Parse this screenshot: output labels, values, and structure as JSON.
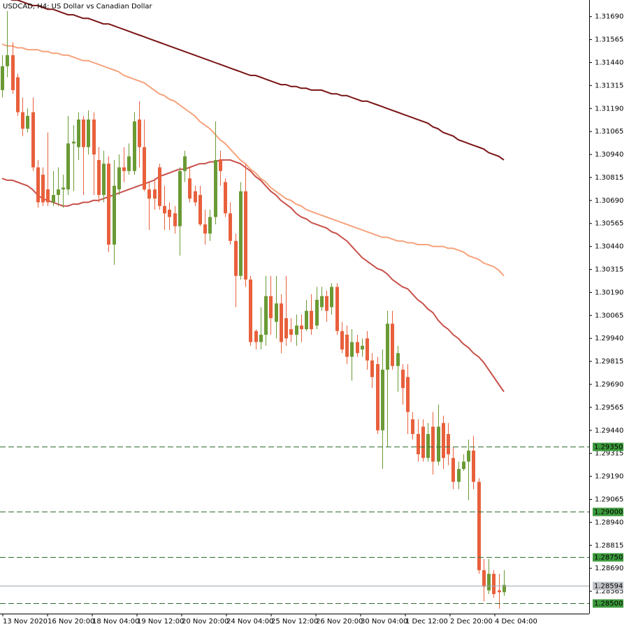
{
  "chart_data": {
    "type": "candlestick",
    "title": "USDCAD, H4:  US Dollar vs Canadian Dollar",
    "up_color": "#6a9a35",
    "down_color": "#e8603c",
    "ylim": [
      1.284436,
      1.3178
    ],
    "yticks": [
      {
        "value": 1.3169,
        "label": "1.31690"
      },
      1.31565,
      {
        "value": 1.3144,
        "label": "1.31440"
      },
      1.31315,
      {
        "value": 1.3119,
        "label": "1.31190"
      },
      1.31065,
      {
        "value": 1.3094,
        "label": "1.30940"
      },
      1.30815,
      {
        "value": 1.3069,
        "label": "1.30690"
      },
      1.30565,
      {
        "value": 1.3044,
        "label": "1.30440"
      },
      1.30315,
      {
        "value": 1.3019,
        "label": "1.30190"
      },
      1.30065,
      {
        "value": 1.2994,
        "label": "1.29940"
      },
      1.29815,
      {
        "value": 1.2969,
        "label": "1.29690"
      },
      1.29565,
      {
        "value": 1.2944,
        "label": "1.29440"
      },
      1.29315,
      {
        "value": 1.2919,
        "label": "1.29190"
      },
      1.29065,
      {
        "value": 1.2894,
        "label": "1.28940"
      },
      1.28815,
      {
        "value": 1.2869,
        "label": "1.28690"
      },
      1.28565
    ],
    "x_labels": [
      "13 Nov 2020",
      "16 Nov 20:00",
      "18 Nov 04:00",
      "19 Nov 12:00",
      "20 Nov 20:00",
      "24 Nov 04:00",
      "25 Nov 12:00",
      "26 Nov 20:00",
      "30 Nov 04:00",
      "1 Dec 12:00",
      "2 Dec 20:00",
      "4 Dec 04:00"
    ],
    "levels": [
      {
        "value": 1.2935,
        "label": "1.29350"
      },
      {
        "value": 1.29,
        "label": "1.29000"
      },
      {
        "value": 1.2875,
        "label": "1.28750"
      },
      {
        "value": 1.285,
        "label": "1.28500"
      }
    ],
    "level_color": "#2f6e2f",
    "bid": 1.28594,
    "open": [
      1.3129,
      1.3142,
      1.3148,
      1.3136,
      1.3117,
      1.3108,
      1.3117,
      1.3087,
      1.3083,
      1.3075,
      1.3068,
      1.3072,
      1.3075,
      1.3075,
      1.31,
      1.3098,
      1.3113,
      1.3098,
      1.3113,
      1.3091,
      1.3072,
      1.3089,
      1.3045,
      1.3075,
      1.3087,
      1.3085,
      1.3085,
      1.3113,
      1.3098,
      1.3075,
      1.3075,
      1.3087,
      1.3066,
      1.3064,
      1.3062,
      1.3055,
      1.3085,
      1.3081,
      1.3074,
      1.3072,
      1.3056,
      1.3051,
      1.306,
      1.3091,
      1.3079,
      1.3062,
      1.3047,
      1.3028,
      1.3074,
      1.3026,
      1.2998,
      1.2992,
      1.2996,
      1.3017,
      1.3003,
      1.3013,
      1.3005,
      1.2999,
      1.2996,
      1.3001,
      1.2999,
      1.3009,
      1.3001,
      1.3011,
      1.3017,
      1.3011,
      1.3022,
      1.2998,
      1.2996,
      1.2984,
      1.2992,
      1.2988,
      1.2994,
      1.2982,
      1.298,
      1.2944,
      1.2977,
      1.3002,
      1.2979,
      1.2977,
      1.2973,
      1.295,
      1.2942,
      1.2946,
      1.2929,
      1.2946,
      1.2927,
      1.2948,
      1.2942,
      1.2929,
      1.2916,
      1.2923,
      1.2927,
      1.2933,
      1.2916,
      1.2868,
      1.2857,
      1.2866,
      1.2857,
      1.2856
    ],
    "high": [
      1.3148,
      1.3172,
      1.3155,
      1.3138,
      1.3125,
      1.3119,
      1.3125,
      1.3091,
      1.3087,
      1.3106,
      1.3085,
      1.3087,
      1.3083,
      1.3115,
      1.311,
      1.3117,
      1.3115,
      1.3118,
      1.3117,
      1.3098,
      1.3096,
      1.3093,
      1.3091,
      1.3094,
      1.3098,
      1.31,
      1.3117,
      1.3123,
      1.3113,
      1.3079,
      1.3081,
      1.3089,
      1.3077,
      1.3068,
      1.3066,
      1.3087,
      1.3096,
      1.3087,
      1.3077,
      1.3077,
      1.3064,
      1.3064,
      1.3112,
      1.3096,
      1.3081,
      1.3068,
      1.3051,
      1.3079,
      1.3089,
      1.3028,
      1.2999,
      1.3011,
      1.3028,
      1.3028,
      1.3028,
      1.3018,
      1.3028,
      1.3005,
      1.3007,
      1.3007,
      1.3015,
      1.3018,
      1.3022,
      1.3022,
      1.302,
      1.3024,
      1.3024,
      1.3003,
      1.3001,
      1.2999,
      1.2996,
      1.2994,
      1.2998,
      1.2986,
      1.2984,
      1.2988,
      1.3009,
      1.3009,
      1.299,
      1.298,
      1.298,
      1.2954,
      1.295,
      1.295,
      1.2948,
      1.2954,
      1.2958,
      1.2952,
      1.2948,
      1.2935,
      1.2927,
      1.2931,
      1.2939,
      1.2941,
      1.2918,
      1.2874,
      1.2874,
      1.2868,
      1.2866,
      1.2868
    ],
    "low": [
      1.3125,
      1.3136,
      1.3127,
      1.3115,
      1.3104,
      1.3106,
      1.3085,
      1.3065,
      1.3066,
      1.3066,
      1.3066,
      1.3066,
      1.3065,
      1.3072,
      1.3074,
      1.3091,
      1.3072,
      1.3094,
      1.3072,
      1.3068,
      1.3068,
      1.3041,
      1.3034,
      1.3072,
      1.3079,
      1.3083,
      1.3083,
      1.3087,
      1.3074,
      1.3053,
      1.3064,
      1.3064,
      1.3053,
      1.3053,
      1.3051,
      1.3039,
      1.3079,
      1.3068,
      1.3066,
      1.3055,
      1.3045,
      1.3047,
      1.3056,
      1.3077,
      1.306,
      1.3045,
      1.3011,
      1.3026,
      1.3022,
      1.299,
      1.2988,
      1.2988,
      1.299,
      1.2996,
      1.2994,
      1.2986,
      1.299,
      1.2992,
      1.299,
      1.2992,
      1.2998,
      1.2996,
      1.2999,
      1.3009,
      1.3003,
      1.3007,
      1.2996,
      1.2986,
      1.298,
      1.2971,
      1.2984,
      1.2984,
      1.2977,
      1.2967,
      1.2942,
      1.2923,
      1.2935,
      1.2977,
      1.2965,
      1.2958,
      1.2942,
      1.2939,
      1.2927,
      1.2927,
      1.2927,
      1.292,
      1.2925,
      1.2923,
      1.2925,
      1.2912,
      1.2912,
      1.2922,
      1.2906,
      1.2912,
      1.2866,
      1.2851,
      1.2855,
      1.2853,
      1.2847,
      1.2854
    ],
    "close": [
      1.3142,
      1.3148,
      1.3129,
      1.3117,
      1.3108,
      1.3115,
      1.3087,
      1.3068,
      1.3068,
      1.3068,
      1.3072,
      1.3075,
      1.3076,
      1.31,
      1.3101,
      1.3113,
      1.3098,
      1.3113,
      1.3094,
      1.3072,
      1.3089,
      1.3045,
      1.3077,
      1.3087,
      1.3085,
      1.3093,
      1.3112,
      1.3098,
      1.3075,
      1.307,
      1.307,
      1.3066,
      1.3062,
      1.306,
      1.3055,
      1.3085,
      1.3093,
      1.307,
      1.3068,
      1.3056,
      1.3051,
      1.306,
      1.3091,
      1.3085,
      1.3062,
      1.3047,
      1.3028,
      1.3074,
      1.3026,
      1.2992,
      1.2992,
      1.2996,
      1.3017,
      1.3005,
      1.3013,
      1.2992,
      1.2994,
      1.2996,
      1.3001,
      1.2999,
      1.3009,
      1.2999,
      1.3015,
      1.3017,
      1.3009,
      1.3022,
      1.2998,
      1.2988,
      1.2984,
      1.2992,
      1.2986,
      1.299,
      1.2982,
      1.2973,
      1.2944,
      1.2977,
      1.3002,
      1.2979,
      1.2986,
      1.2967,
      1.2954,
      1.2942,
      1.2931,
      1.2929,
      1.2942,
      1.2927,
      1.2946,
      1.2929,
      1.2931,
      1.2916,
      1.2923,
      1.2927,
      1.2933,
      1.2916,
      1.2868,
      1.2859,
      1.2866,
      1.2855,
      1.2856,
      1.286
    ],
    "moving_averages": [
      {
        "color": "#7a1414",
        "values": [
          1.318,
          1.3179,
          1.3178,
          1.3178,
          1.3177,
          1.3176,
          1.3175,
          1.3175,
          1.3174,
          1.3173,
          1.3173,
          1.3172,
          1.3171,
          1.317,
          1.317,
          1.3169,
          1.3168,
          1.3168,
          1.3167,
          1.3166,
          1.3165,
          1.3165,
          1.3164,
          1.3163,
          1.3162,
          1.3161,
          1.316,
          1.3159,
          1.3158,
          1.3157,
          1.3156,
          1.3155,
          1.3154,
          1.3153,
          1.3152,
          1.3151,
          1.315,
          1.3149,
          1.3148,
          1.3147,
          1.3146,
          1.3145,
          1.3144,
          1.3143,
          1.3142,
          1.3141,
          1.314,
          1.3139,
          1.3138,
          1.3137,
          1.3137,
          1.3136,
          1.3135,
          1.3134,
          1.3133,
          1.3132,
          1.3132,
          1.3131,
          1.3131,
          1.313,
          1.313,
          1.3129,
          1.3129,
          1.3129,
          1.3128,
          1.3127,
          1.3127,
          1.3126,
          1.3126,
          1.3125,
          1.3124,
          1.3123,
          1.3123,
          1.3122,
          1.3121,
          1.312,
          1.3119,
          1.3118,
          1.3117,
          1.3116,
          1.3115,
          1.3114,
          1.3113,
          1.3112,
          1.3111,
          1.3109,
          1.3108,
          1.3106,
          1.3105,
          1.3104,
          1.3102,
          1.3101,
          1.31,
          1.3099,
          1.3098,
          1.3097,
          1.3095,
          1.3094,
          1.3093,
          1.3091
        ]
      },
      {
        "color": "#f5a37c",
        "values": [
          1.3154,
          1.3153,
          1.3153,
          1.3152,
          1.3152,
          1.3151,
          1.3151,
          1.3151,
          1.315,
          1.315,
          1.3149,
          1.3149,
          1.3148,
          1.3148,
          1.3147,
          1.3146,
          1.3145,
          1.3145,
          1.3144,
          1.3143,
          1.3142,
          1.3141,
          1.314,
          1.3139,
          1.3137,
          1.3136,
          1.3135,
          1.3134,
          1.3133,
          1.3131,
          1.3129,
          1.3127,
          1.3126,
          1.3124,
          1.3123,
          1.3121,
          1.3119,
          1.3117,
          1.3115,
          1.3112,
          1.311,
          1.3108,
          1.3105,
          1.3102,
          1.31,
          1.3097,
          1.3094,
          1.3091,
          1.3089,
          1.3086,
          1.3084,
          1.3081,
          1.3079,
          1.3076,
          1.3074,
          1.3072,
          1.307,
          1.3069,
          1.3067,
          1.3066,
          1.3064,
          1.3063,
          1.3062,
          1.3061,
          1.306,
          1.3059,
          1.3058,
          1.3057,
          1.3056,
          1.3055,
          1.3054,
          1.3053,
          1.3052,
          1.3051,
          1.305,
          1.3049,
          1.3049,
          1.3048,
          1.3047,
          1.3047,
          1.3046,
          1.3046,
          1.3045,
          1.3045,
          1.3045,
          1.3044,
          1.3044,
          1.3044,
          1.3043,
          1.3043,
          1.3042,
          1.3041,
          1.3039,
          1.3038,
          1.3037,
          1.3035,
          1.3034,
          1.3033,
          1.3031,
          1.3028
        ]
      },
      {
        "color": "#c8504a",
        "values": [
          1.3081,
          1.308,
          1.308,
          1.3079,
          1.3078,
          1.3077,
          1.3075,
          1.3072,
          1.307,
          1.3069,
          1.3068,
          1.3067,
          1.3066,
          1.3066,
          1.3067,
          1.3067,
          1.3068,
          1.3068,
          1.3069,
          1.3069,
          1.307,
          1.3071,
          1.3072,
          1.3073,
          1.3074,
          1.3075,
          1.3076,
          1.3077,
          1.3078,
          1.3079,
          1.308,
          1.3082,
          1.3083,
          1.3084,
          1.3085,
          1.3086,
          1.3086,
          1.3087,
          1.3088,
          1.3089,
          1.3089,
          1.309,
          1.309,
          1.3091,
          1.3091,
          1.3091,
          1.309,
          1.3089,
          1.3087,
          1.3085,
          1.3082,
          1.308,
          1.3077,
          1.3074,
          1.3072,
          1.3069,
          1.3067,
          1.3065,
          1.3062,
          1.306,
          1.3059,
          1.3057,
          1.3056,
          1.3055,
          1.3054,
          1.3052,
          1.3051,
          1.3049,
          1.3047,
          1.3044,
          1.3041,
          1.3038,
          1.3036,
          1.3034,
          1.3032,
          1.3031,
          1.3029,
          1.3026,
          1.3024,
          1.3022,
          1.3021,
          1.3018,
          1.3015,
          1.3013,
          1.301,
          1.3008,
          1.3004,
          1.3001,
          1.2999,
          1.2996,
          1.2994,
          1.2991,
          1.2989,
          1.2986,
          1.2984,
          1.2981,
          1.2977,
          1.2973,
          1.2969,
          1.2965
        ]
      }
    ]
  }
}
